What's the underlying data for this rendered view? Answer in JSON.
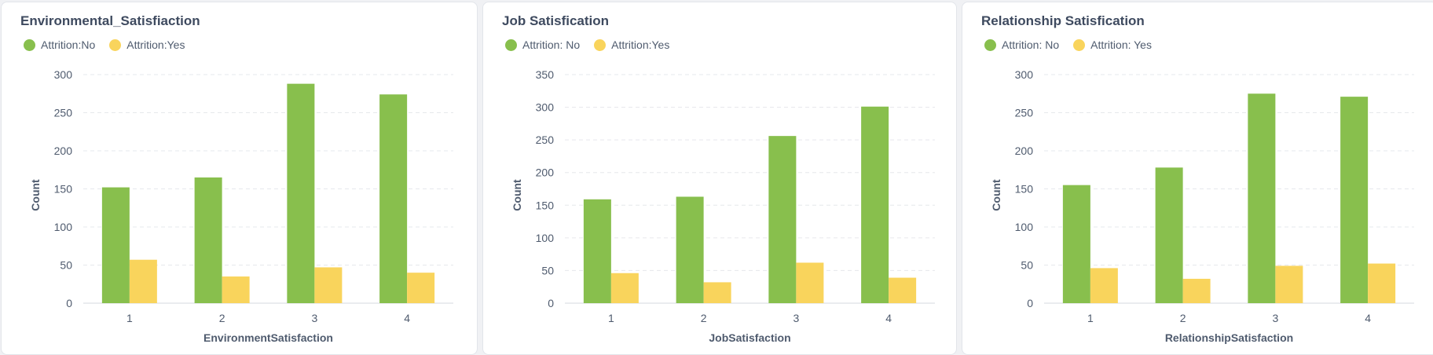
{
  "colors": {
    "no": "#88bf4d",
    "yes": "#f9d45c"
  },
  "charts": [
    {
      "title": "Environmental_Satisfiaction",
      "legend": [
        "Attrition:No",
        "Attrition:Yes"
      ],
      "xlabel": "EnvironmentSatisfaction",
      "ylabel": "Count",
      "yticks": [
        "0",
        "50",
        "100",
        "150",
        "200",
        "250",
        "300"
      ]
    },
    {
      "title": "Job Satisfication",
      "legend": [
        "Attrition: No",
        "Attrition:Yes"
      ],
      "xlabel": "JobSatisfaction",
      "ylabel": "Count",
      "yticks": [
        "0",
        "50",
        "100",
        "150",
        "200",
        "250",
        "300",
        "350"
      ]
    },
    {
      "title": "Relationship Satisfication",
      "legend": [
        "Attrition: No",
        "Attrition: Yes"
      ],
      "xlabel": "RelationshipSatisfaction",
      "ylabel": "Count",
      "yticks": [
        "0",
        "50",
        "100",
        "150",
        "200",
        "250",
        "300"
      ]
    }
  ],
  "chart_data": [
    {
      "type": "bar",
      "title": "Environmental_Satisfiaction",
      "categories": [
        "1",
        "2",
        "3",
        "4"
      ],
      "series": [
        {
          "name": "Attrition:No",
          "values": [
            152,
            165,
            288,
            274
          ]
        },
        {
          "name": "Attrition:Yes",
          "values": [
            57,
            35,
            47,
            40
          ]
        }
      ],
      "xlabel": "EnvironmentSatisfaction",
      "ylabel": "Count",
      "ylim": [
        0,
        300
      ],
      "grid": true,
      "legend": "top-left"
    },
    {
      "type": "bar",
      "title": "Job Satisfication",
      "categories": [
        "1",
        "2",
        "3",
        "4"
      ],
      "series": [
        {
          "name": "Attrition: No",
          "values": [
            159,
            163,
            256,
            301
          ]
        },
        {
          "name": "Attrition:Yes",
          "values": [
            46,
            32,
            62,
            39
          ]
        }
      ],
      "xlabel": "JobSatisfaction",
      "ylabel": "Count",
      "ylim": [
        0,
        350
      ],
      "grid": true,
      "legend": "top-left"
    },
    {
      "type": "bar",
      "title": "Relationship Satisfication",
      "categories": [
        "1",
        "2",
        "3",
        "4"
      ],
      "series": [
        {
          "name": "Attrition: No",
          "values": [
            155,
            178,
            275,
            271
          ]
        },
        {
          "name": "Attrition: Yes",
          "values": [
            46,
            32,
            49,
            52
          ]
        }
      ],
      "xlabel": "RelationshipSatisfaction",
      "ylabel": "Count",
      "ylim": [
        0,
        300
      ],
      "grid": true,
      "legend": "top-left"
    }
  ]
}
